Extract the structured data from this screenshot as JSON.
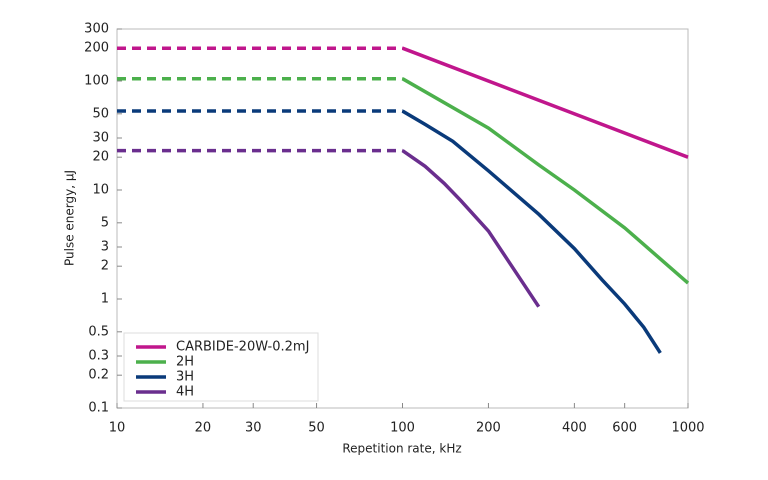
{
  "chart_data": {
    "type": "line",
    "x_label": "Repetition rate, kHz",
    "y_label": "Pulse energy, µJ",
    "x_log": true,
    "y_log": true,
    "xlim": [
      10,
      1000
    ],
    "ylim": [
      0.1,
      300
    ],
    "xticks": [
      10,
      20,
      30,
      50,
      100,
      200,
      400,
      600,
      1000
    ],
    "yticks": [
      0.1,
      0.2,
      0.3,
      0.5,
      1,
      2,
      3,
      5,
      10,
      20,
      30,
      50,
      100,
      200,
      300
    ],
    "dashed_up_to_x": 100,
    "legend": "lower-left",
    "series": [
      {
        "name": "CARBIDE-20W-0.2mJ",
        "color": "#c0168c",
        "x": [
          10,
          100,
          1000
        ],
        "values": [
          200,
          200,
          20
        ]
      },
      {
        "name": "2H",
        "color": "#4cb04c",
        "x": [
          10,
          100,
          200,
          300,
          400,
          600,
          1000
        ],
        "values": [
          105,
          105,
          37,
          17,
          10,
          4.5,
          1.4
        ]
      },
      {
        "name": "3H",
        "color": "#0a3a7a",
        "x": [
          10,
          100,
          120,
          150,
          200,
          300,
          400,
          500,
          600,
          700,
          800
        ],
        "values": [
          53,
          53,
          40,
          28,
          15,
          6,
          2.9,
          1.5,
          0.9,
          0.55,
          0.32
        ]
      },
      {
        "name": "4H",
        "color": "#6a2e8e",
        "x": [
          10,
          100,
          120,
          140,
          160,
          200,
          300
        ],
        "values": [
          23,
          23,
          16.5,
          11.5,
          8,
          4.2,
          0.85
        ]
      }
    ]
  }
}
